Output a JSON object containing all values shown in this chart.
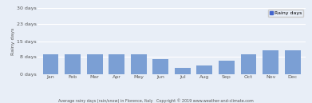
{
  "months": [
    "Jan",
    "Feb",
    "Mar",
    "Apr",
    "May",
    "Jun",
    "Jul",
    "Aug",
    "Sep",
    "Oct",
    "Nov",
    "Dec"
  ],
  "values": [
    9,
    9,
    9,
    9,
    9,
    7,
    3,
    4,
    6,
    9,
    11,
    11
  ],
  "bar_color": "#7B9FD4",
  "legend_color": "#4466CC",
  "yticks": [
    0,
    8,
    15,
    23,
    30
  ],
  "ytick_labels": [
    "0 days",
    "8 days",
    "15 days",
    "23 days",
    "30 days"
  ],
  "ylabel": "Rainy days",
  "caption": "Average rainy days (rain/snow) in Florence, Italy   Copyright © 2019 www.weather-and-climate.com",
  "legend_label": "Rainy days",
  "bg_color": "#E8EEF7",
  "grid_color": "#FFFFFF",
  "tick_fontsize": 4.5,
  "ylabel_fontsize": 4.5,
  "caption_fontsize": 3.5,
  "legend_fontsize": 4.5
}
